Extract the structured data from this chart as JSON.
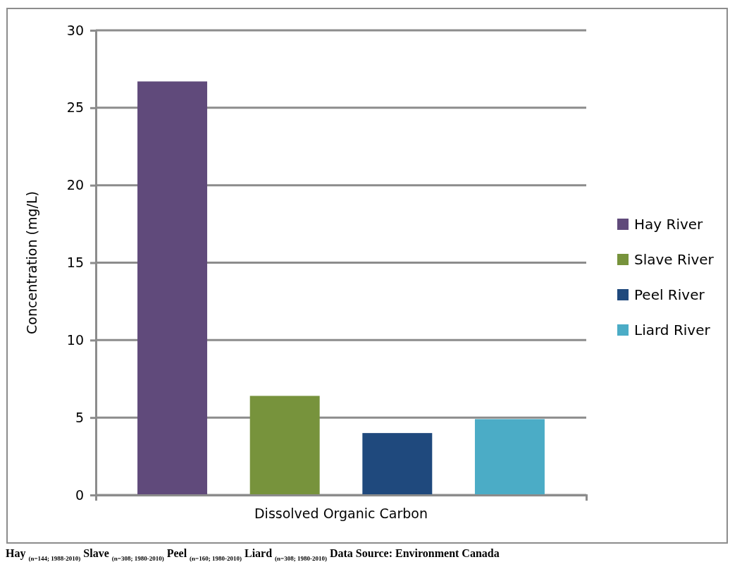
{
  "chart_data": {
    "type": "bar",
    "ylabel": "Concentration (mg/L)",
    "categories": [
      "Dissolved Organic Carbon"
    ],
    "series": [
      {
        "name": "Hay River",
        "color": "#604a7b",
        "values": [
          26.7
        ]
      },
      {
        "name": "Slave River",
        "color": "#77933c",
        "values": [
          6.4
        ]
      },
      {
        "name": "Peel River",
        "color": "#1f497d",
        "values": [
          4.0
        ]
      },
      {
        "name": "Liard River",
        "color": "#4bacc6",
        "values": [
          4.9
        ]
      }
    ],
    "ylim": [
      0,
      30
    ],
    "yticks": [
      0,
      5,
      10,
      15,
      20,
      25,
      30
    ],
    "grid": "y",
    "legend": "right",
    "annotations": [
      "Hay $_{(n=144; 1988-2010)}$ Slave $_{(n=308; 1980-2010)}$ Peel $_{(n=160; 1980-2010)}$ Liard $_{(n=308; 1980-2010)}$ Data Source: Environment Canada"
    ]
  }
}
